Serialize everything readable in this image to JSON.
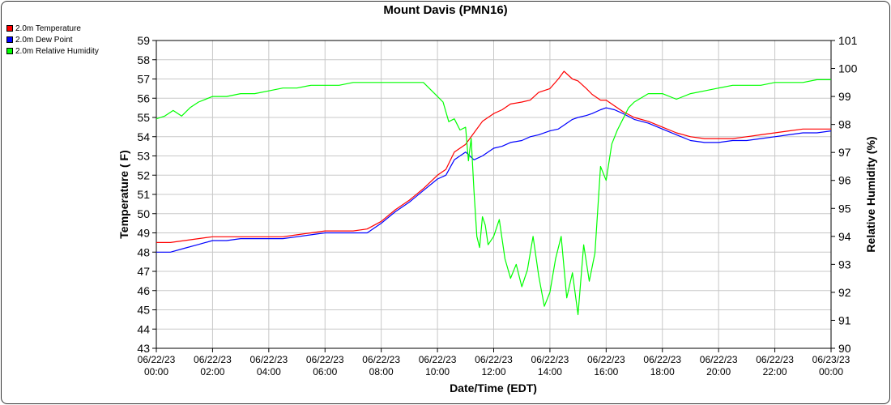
{
  "chart_data": {
    "type": "line",
    "title": "Mount Davis (PMN16)",
    "xlabel": "Date/Time (EDT)",
    "ylabel": "Temperature ( F)",
    "y2label": "Relative Humidity (%)",
    "ylim": [
      43,
      59
    ],
    "y2lim": [
      90,
      101
    ],
    "yticks": [
      43,
      44,
      45,
      46,
      47,
      48,
      49,
      50,
      51,
      52,
      53,
      54,
      55,
      56,
      57,
      58,
      59
    ],
    "y2ticks": [
      90,
      91,
      92,
      93,
      94,
      95,
      96,
      97,
      98,
      99,
      100,
      101
    ],
    "xlim": [
      0,
      24
    ],
    "xticks": [
      {
        "date": "06/22/23",
        "time": "00:00"
      },
      {
        "date": "06/22/23",
        "time": "02:00"
      },
      {
        "date": "06/22/23",
        "time": "04:00"
      },
      {
        "date": "06/22/23",
        "time": "06:00"
      },
      {
        "date": "06/22/23",
        "time": "08:00"
      },
      {
        "date": "06/22/23",
        "time": "10:00"
      },
      {
        "date": "06/22/23",
        "time": "12:00"
      },
      {
        "date": "06/22/23",
        "time": "14:00"
      },
      {
        "date": "06/22/23",
        "time": "16:00"
      },
      {
        "date": "06/22/23",
        "time": "18:00"
      },
      {
        "date": "06/22/23",
        "time": "20:00"
      },
      {
        "date": "06/22/23",
        "time": "22:00"
      },
      {
        "date": "06/23/23",
        "time": "00:00"
      }
    ],
    "grid": true,
    "legend_position": "top-left",
    "series": [
      {
        "name": "2.0m Temperature",
        "color": "#ff0000",
        "axis": "left",
        "x": [
          0,
          0.5,
          1,
          1.5,
          2,
          2.5,
          3,
          3.5,
          4,
          4.5,
          5,
          5.5,
          6,
          6.5,
          7,
          7.5,
          8,
          8.5,
          9,
          9.5,
          10,
          10.3,
          10.6,
          11,
          11.3,
          11.6,
          12,
          12.3,
          12.6,
          13,
          13.3,
          13.6,
          14,
          14.3,
          14.5,
          14.8,
          15,
          15.3,
          15.5,
          15.8,
          16,
          16.3,
          16.6,
          17,
          17.5,
          18,
          18.5,
          19,
          19.5,
          20,
          20.5,
          21,
          21.5,
          22,
          22.5,
          23,
          23.5,
          24
        ],
        "y": [
          48.5,
          48.5,
          48.6,
          48.7,
          48.8,
          48.8,
          48.8,
          48.8,
          48.8,
          48.8,
          48.9,
          49.0,
          49.1,
          49.1,
          49.1,
          49.2,
          49.6,
          50.2,
          50.7,
          51.3,
          52.0,
          52.3,
          53.2,
          53.6,
          54.2,
          54.8,
          55.2,
          55.4,
          55.7,
          55.8,
          55.9,
          56.3,
          56.5,
          57.0,
          57.4,
          57.0,
          56.9,
          56.5,
          56.2,
          55.9,
          55.9,
          55.6,
          55.3,
          55.0,
          54.8,
          54.5,
          54.2,
          54.0,
          53.9,
          53.9,
          53.9,
          54.0,
          54.1,
          54.2,
          54.3,
          54.4,
          54.4,
          54.4
        ]
      },
      {
        "name": "2.0m Dew Point",
        "color": "#0000ff",
        "axis": "left",
        "x": [
          0,
          0.5,
          1,
          1.5,
          2,
          2.5,
          3,
          3.5,
          4,
          4.5,
          5,
          5.5,
          6,
          6.5,
          7,
          7.5,
          8,
          8.5,
          9,
          9.5,
          10,
          10.3,
          10.6,
          11,
          11.3,
          11.6,
          12,
          12.3,
          12.6,
          13,
          13.3,
          13.6,
          14,
          14.3,
          14.5,
          14.8,
          15,
          15.3,
          15.5,
          15.8,
          16,
          16.3,
          16.6,
          17,
          17.5,
          18,
          18.5,
          19,
          19.5,
          20,
          20.5,
          21,
          21.5,
          22,
          22.5,
          23,
          23.5,
          24
        ],
        "y": [
          48.0,
          48.0,
          48.2,
          48.4,
          48.6,
          48.6,
          48.7,
          48.7,
          48.7,
          48.7,
          48.8,
          48.9,
          49.0,
          49.0,
          49.0,
          49.0,
          49.5,
          50.1,
          50.6,
          51.2,
          51.8,
          52.0,
          52.8,
          53.2,
          52.8,
          53.0,
          53.4,
          53.5,
          53.7,
          53.8,
          54.0,
          54.1,
          54.3,
          54.4,
          54.6,
          54.9,
          55.0,
          55.1,
          55.2,
          55.4,
          55.5,
          55.4,
          55.2,
          54.9,
          54.7,
          54.4,
          54.1,
          53.8,
          53.7,
          53.7,
          53.8,
          53.8,
          53.9,
          54.0,
          54.1,
          54.2,
          54.2,
          54.3
        ]
      },
      {
        "name": "2.0m Relative Humidity",
        "color": "#00ff00",
        "axis": "right",
        "x": [
          0,
          0.3,
          0.6,
          0.9,
          1.2,
          1.5,
          2,
          2.5,
          3,
          3.5,
          4,
          4.5,
          5,
          5.5,
          6,
          6.5,
          7,
          7.5,
          8,
          8.5,
          9,
          9.5,
          10,
          10.2,
          10.4,
          10.6,
          10.8,
          11,
          11.1,
          11.2,
          11.3,
          11.4,
          11.5,
          11.6,
          11.7,
          11.8,
          12,
          12.2,
          12.4,
          12.6,
          12.8,
          13,
          13.2,
          13.4,
          13.6,
          13.8,
          14,
          14.2,
          14.4,
          14.6,
          14.8,
          15,
          15.2,
          15.4,
          15.6,
          15.8,
          16,
          16.2,
          16.4,
          16.6,
          16.8,
          17,
          17.5,
          18,
          18.5,
          19,
          19.5,
          20,
          20.5,
          21,
          21.5,
          22,
          22.5,
          23,
          23.5,
          24
        ],
        "y": [
          98.2,
          98.3,
          98.5,
          98.3,
          98.6,
          98.8,
          99.0,
          99.0,
          99.1,
          99.1,
          99.2,
          99.3,
          99.3,
          99.4,
          99.4,
          99.4,
          99.5,
          99.5,
          99.5,
          99.5,
          99.5,
          99.5,
          99.0,
          98.8,
          98.1,
          98.2,
          97.8,
          97.9,
          96.7,
          97.5,
          95.6,
          94.0,
          93.6,
          94.7,
          94.4,
          93.7,
          94.0,
          94.6,
          93.2,
          92.5,
          93.0,
          92.2,
          92.8,
          94.0,
          92.6,
          91.5,
          92.0,
          93.2,
          94.0,
          91.8,
          92.7,
          91.2,
          93.7,
          92.4,
          93.4,
          96.5,
          96.0,
          97.3,
          97.8,
          98.2,
          98.6,
          98.8,
          99.1,
          99.1,
          98.9,
          99.1,
          99.2,
          99.3,
          99.4,
          99.4,
          99.4,
          99.5,
          99.5,
          99.5,
          99.6,
          99.6
        ]
      }
    ]
  }
}
